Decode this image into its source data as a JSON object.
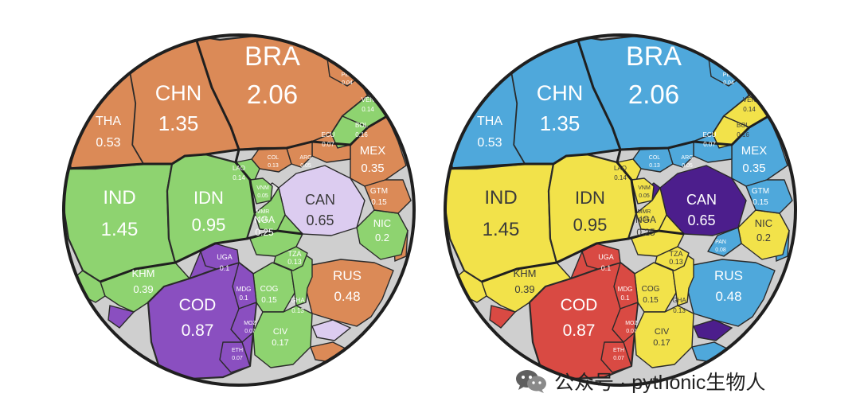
{
  "chart_data": [
    {
      "type": "voronoi-treemap",
      "title": "",
      "cells": [
        {
          "code": "BRA",
          "value": "2.06",
          "color": "#DB8A57"
        },
        {
          "code": "CHN",
          "value": "1.35",
          "color": "#DB8A57"
        },
        {
          "code": "THA",
          "value": "0.53",
          "color": "#DB8A57"
        },
        {
          "code": "IND",
          "value": "1.45",
          "color": "#8ED370"
        },
        {
          "code": "IDN",
          "value": "0.95",
          "color": "#8ED370"
        },
        {
          "code": "KHM",
          "value": "0.39",
          "color": "#8ED370"
        },
        {
          "code": "COD",
          "value": "0.87",
          "color": "#8A4FC0"
        },
        {
          "code": "CAN",
          "value": "0.65",
          "color": "#DCCCF0"
        },
        {
          "code": "RUS",
          "value": "0.48",
          "color": "#DB8A57"
        },
        {
          "code": "MEX",
          "value": "0.35",
          "color": "#DB8A57"
        },
        {
          "code": "NGA",
          "value": "0.25",
          "color": "#8ED370"
        },
        {
          "code": "NIC",
          "value": "0.2",
          "color": "#8ED370"
        },
        {
          "code": "COG",
          "value": "0.15",
          "color": "#8ED370"
        },
        {
          "code": "GHA",
          "value": "0.13",
          "color": "#8ED370"
        },
        {
          "code": "CIV",
          "value": "0.17",
          "color": "#8ED370"
        },
        {
          "code": "TZA",
          "value": "0.13",
          "color": "#8ED370"
        },
        {
          "code": "GTM",
          "value": "0.15",
          "color": "#DB8A57"
        },
        {
          "code": "VEN",
          "value": "0.14",
          "color": "#8ED370"
        },
        {
          "code": "BOL",
          "value": "0.16",
          "color": "#8ED370"
        },
        {
          "code": "ECU",
          "value": "0.07",
          "color": "#DB8A57"
        },
        {
          "code": "COL",
          "value": "0.13",
          "color": "#DB8A57"
        },
        {
          "code": "ARG",
          "value": "0.05",
          "color": "#DB8A57"
        },
        {
          "code": "LAO",
          "value": "0.14",
          "color": "#8ED370"
        },
        {
          "code": "VNM",
          "value": "0.05",
          "color": "#8ED370"
        },
        {
          "code": "MMR",
          "value": "0.15",
          "color": "#8ED370"
        },
        {
          "code": "UGA",
          "value": "0.1",
          "color": "#8A4FC0"
        },
        {
          "code": "MDG",
          "value": "0.1",
          "color": "#8A4FC0"
        },
        {
          "code": "MOZ",
          "value": "0.07",
          "color": "#8A4FC0"
        },
        {
          "code": "ETH",
          "value": "0.07",
          "color": "#8A4FC0"
        },
        {
          "code": "PER",
          "value": "0.04",
          "color": "#DB8A57"
        }
      ]
    },
    {
      "type": "voronoi-treemap",
      "title": "",
      "cells": [
        {
          "code": "BRA",
          "value": "2.06",
          "color": "#4FA8DB"
        },
        {
          "code": "CHN",
          "value": "1.35",
          "color": "#4FA8DB"
        },
        {
          "code": "THA",
          "value": "0.53",
          "color": "#4FA8DB"
        },
        {
          "code": "IND",
          "value": "1.45",
          "color": "#F2E24A"
        },
        {
          "code": "IDN",
          "value": "0.95",
          "color": "#F2E24A"
        },
        {
          "code": "KHM",
          "value": "0.39",
          "color": "#F2E24A"
        },
        {
          "code": "COD",
          "value": "0.87",
          "color": "#D94A43"
        },
        {
          "code": "CAN",
          "value": "0.65",
          "color": "#4C1E8C"
        },
        {
          "code": "RUS",
          "value": "0.48",
          "color": "#4FA8DB"
        },
        {
          "code": "MEX",
          "value": "0.35",
          "color": "#4FA8DB"
        },
        {
          "code": "NGA",
          "value": "0.25",
          "color": "#F2E24A"
        },
        {
          "code": "NIC",
          "value": "0.2",
          "color": "#F2E24A"
        },
        {
          "code": "COG",
          "value": "0.15",
          "color": "#F2E24A"
        },
        {
          "code": "GHA",
          "value": "0.13",
          "color": "#F2E24A"
        },
        {
          "code": "CIV",
          "value": "0.17",
          "color": "#F2E24A"
        },
        {
          "code": "TZA",
          "value": "0.13",
          "color": "#F2E24A"
        },
        {
          "code": "GTM",
          "value": "0.15",
          "color": "#4FA8DB"
        },
        {
          "code": "VEN",
          "value": "0.14",
          "color": "#F2E24A"
        },
        {
          "code": "BOL",
          "value": "0.16",
          "color": "#F2E24A"
        },
        {
          "code": "ECU",
          "value": "0.07",
          "color": "#4FA8DB"
        },
        {
          "code": "COL",
          "value": "0.13",
          "color": "#4FA8DB"
        },
        {
          "code": "ARG",
          "value": "0.05",
          "color": "#4FA8DB"
        },
        {
          "code": "LAO",
          "value": "0.14",
          "color": "#F2E24A"
        },
        {
          "code": "VNM",
          "value": "0.05",
          "color": "#F2E24A"
        },
        {
          "code": "MMR",
          "value": "0.15",
          "color": "#F2E24A"
        },
        {
          "code": "UGA",
          "value": "0.1",
          "color": "#D94A43"
        },
        {
          "code": "MDG",
          "value": "0.1",
          "color": "#D94A43"
        },
        {
          "code": "MOZ",
          "value": "0.07",
          "color": "#D94A43"
        },
        {
          "code": "ETH",
          "value": "0.07",
          "color": "#D94A43"
        },
        {
          "code": "PER",
          "value": "0.04",
          "color": "#4FA8DB"
        },
        {
          "code": "PAN",
          "value": "0.08",
          "color": "#4FA8DB"
        }
      ]
    }
  ],
  "watermark": {
    "icon": "wechat-icon",
    "text": "公众号 · pythonic生物人"
  }
}
